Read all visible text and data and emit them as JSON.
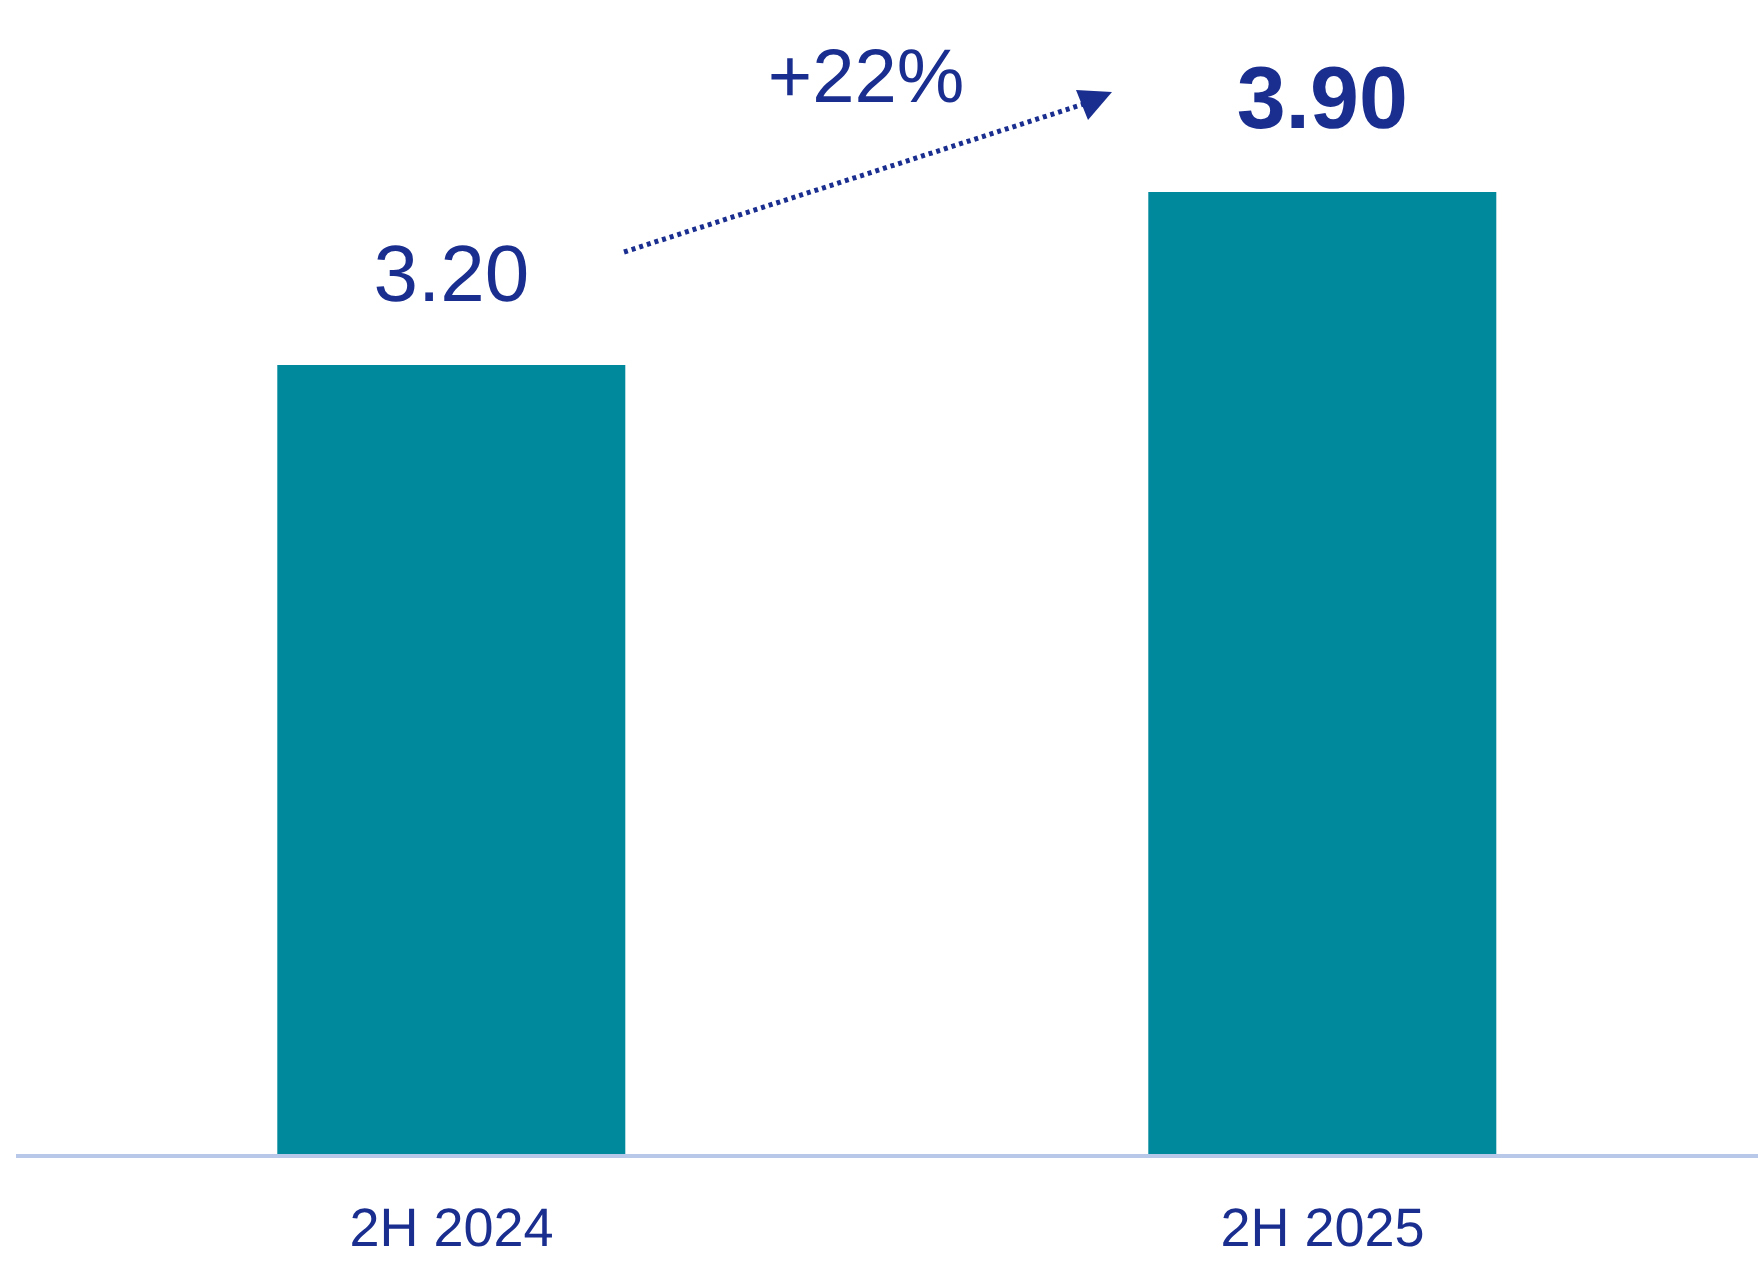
{
  "chart_data": {
    "type": "bar",
    "categories": [
      "2H 2024",
      "2H 2025"
    ],
    "values": [
      3.2,
      3.9
    ],
    "value_labels": [
      "3.20",
      "3.90"
    ],
    "color": "#00889c",
    "annotations": [
      "+22%"
    ]
  }
}
